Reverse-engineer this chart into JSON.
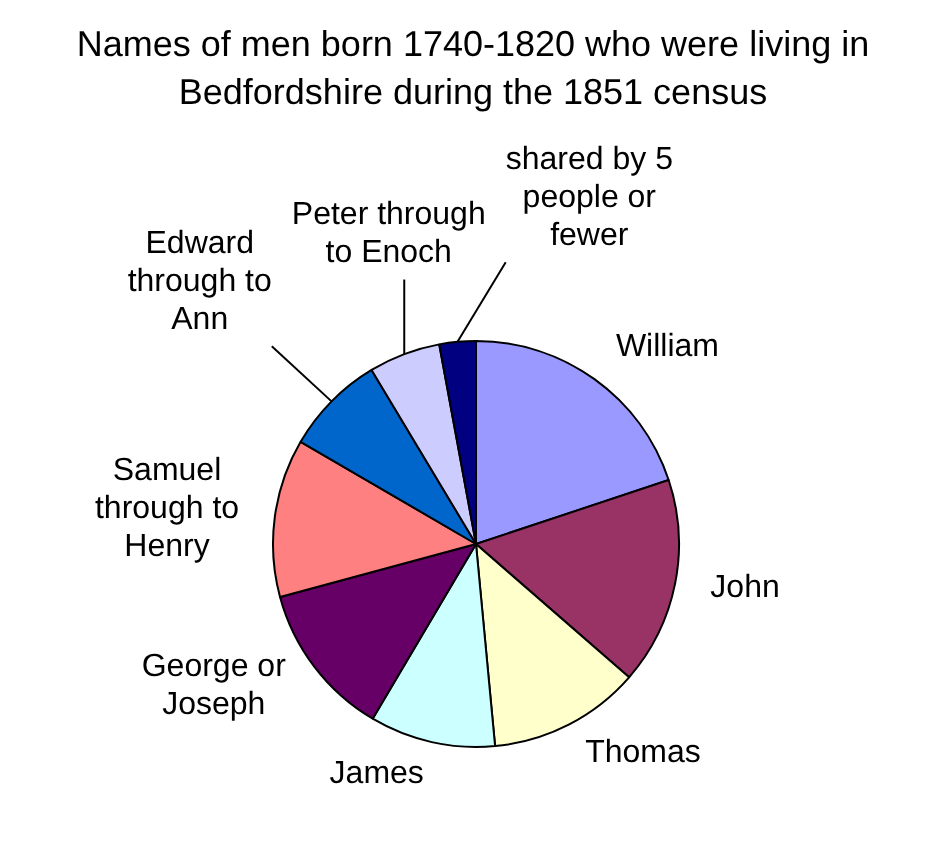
{
  "chart_data": {
    "type": "pie",
    "title": "Names of men born 1740-1820 who were living in Bedfordshire during the 1851 census",
    "categories": [
      "William",
      "John",
      "Thomas",
      "James",
      "George or Joseph",
      "Samuel through to Henry",
      "Edward through to Ann",
      "Peter through to Enoch",
      "shared by 5 people or fewer"
    ],
    "values": [
      19.9,
      16.5,
      12.1,
      10.0,
      12.3,
      12.6,
      8.0,
      5.7,
      2.9
    ],
    "colors": [
      "#9999ff",
      "#993366",
      "#ffffcc",
      "#ccffff",
      "#660066",
      "#ff8080",
      "#0066cc",
      "#ccccff",
      "#000080"
    ],
    "legend": false
  }
}
